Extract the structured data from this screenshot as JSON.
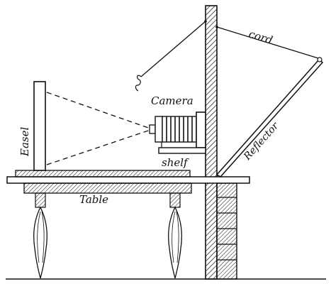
{
  "labels": {
    "cord": "cord",
    "camera": "Camera",
    "reflector": "Reflector",
    "easel": "Easel",
    "shelf": "shelf",
    "table": "Table"
  },
  "colors": {
    "ink": "#111111",
    "background": "#ffffff"
  }
}
